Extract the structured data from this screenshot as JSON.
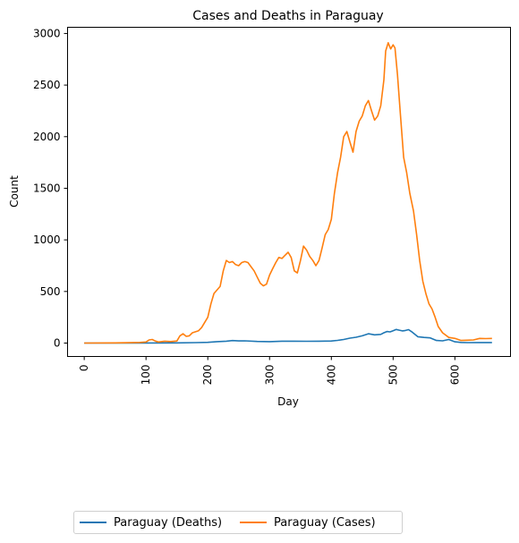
{
  "chart_data": {
    "type": "line",
    "title": "Cases and Deaths in Paraguay",
    "xlabel": "Day",
    "ylabel": "Count",
    "xlim": [
      -27,
      690
    ],
    "ylim": [
      -130,
      3060
    ],
    "xticks": [
      0,
      100,
      200,
      300,
      400,
      500,
      600
    ],
    "yticks": [
      0,
      500,
      1000,
      1500,
      2000,
      2500,
      3000
    ],
    "grid": false,
    "legend_position": "bottom-left (below axes)",
    "series": [
      {
        "name": "Paraguay (Deaths)",
        "color": "#1f77b4",
        "points": [
          [
            0,
            0
          ],
          [
            50,
            0
          ],
          [
            100,
            1
          ],
          [
            150,
            2
          ],
          [
            180,
            4
          ],
          [
            200,
            7
          ],
          [
            215,
            14
          ],
          [
            230,
            18
          ],
          [
            240,
            24
          ],
          [
            250,
            21
          ],
          [
            260,
            22
          ],
          [
            280,
            16
          ],
          [
            300,
            14
          ],
          [
            320,
            18
          ],
          [
            340,
            18
          ],
          [
            360,
            17
          ],
          [
            380,
            18
          ],
          [
            400,
            20
          ],
          [
            410,
            26
          ],
          [
            420,
            35
          ],
          [
            430,
            48
          ],
          [
            440,
            56
          ],
          [
            450,
            70
          ],
          [
            460,
            90
          ],
          [
            470,
            80
          ],
          [
            480,
            84
          ],
          [
            485,
            100
          ],
          [
            490,
            112
          ],
          [
            495,
            108
          ],
          [
            500,
            120
          ],
          [
            505,
            132
          ],
          [
            510,
            125
          ],
          [
            515,
            118
          ],
          [
            520,
            122
          ],
          [
            525,
            130
          ],
          [
            530,
            110
          ],
          [
            540,
            62
          ],
          [
            550,
            55
          ],
          [
            560,
            50
          ],
          [
            570,
            25
          ],
          [
            580,
            22
          ],
          [
            590,
            35
          ],
          [
            600,
            12
          ],
          [
            610,
            6
          ],
          [
            620,
            4
          ],
          [
            640,
            5
          ],
          [
            660,
            5
          ]
        ]
      },
      {
        "name": "Paraguay (Cases)",
        "color": "#ff7f0e",
        "points": [
          [
            0,
            0
          ],
          [
            50,
            2
          ],
          [
            90,
            6
          ],
          [
            100,
            10
          ],
          [
            105,
            30
          ],
          [
            110,
            35
          ],
          [
            115,
            20
          ],
          [
            120,
            10
          ],
          [
            130,
            18
          ],
          [
            140,
            15
          ],
          [
            150,
            20
          ],
          [
            155,
            70
          ],
          [
            160,
            90
          ],
          [
            165,
            65
          ],
          [
            170,
            70
          ],
          [
            175,
            100
          ],
          [
            185,
            120
          ],
          [
            190,
            150
          ],
          [
            200,
            250
          ],
          [
            205,
            380
          ],
          [
            210,
            480
          ],
          [
            220,
            550
          ],
          [
            225,
            700
          ],
          [
            230,
            800
          ],
          [
            235,
            780
          ],
          [
            240,
            790
          ],
          [
            245,
            760
          ],
          [
            250,
            750
          ],
          [
            255,
            780
          ],
          [
            260,
            790
          ],
          [
            265,
            780
          ],
          [
            270,
            740
          ],
          [
            275,
            700
          ],
          [
            280,
            640
          ],
          [
            285,
            580
          ],
          [
            290,
            555
          ],
          [
            295,
            570
          ],
          [
            300,
            660
          ],
          [
            305,
            720
          ],
          [
            310,
            780
          ],
          [
            315,
            830
          ],
          [
            320,
            820
          ],
          [
            325,
            850
          ],
          [
            330,
            880
          ],
          [
            335,
            830
          ],
          [
            340,
            700
          ],
          [
            345,
            680
          ],
          [
            350,
            800
          ],
          [
            355,
            940
          ],
          [
            360,
            900
          ],
          [
            365,
            840
          ],
          [
            370,
            800
          ],
          [
            375,
            750
          ],
          [
            380,
            800
          ],
          [
            385,
            920
          ],
          [
            390,
            1050
          ],
          [
            395,
            1100
          ],
          [
            400,
            1200
          ],
          [
            405,
            1450
          ],
          [
            410,
            1650
          ],
          [
            415,
            1800
          ],
          [
            420,
            2000
          ],
          [
            425,
            2050
          ],
          [
            430,
            1950
          ],
          [
            435,
            1850
          ],
          [
            440,
            2050
          ],
          [
            445,
            2150
          ],
          [
            450,
            2200
          ],
          [
            455,
            2300
          ],
          [
            460,
            2350
          ],
          [
            465,
            2250
          ],
          [
            470,
            2160
          ],
          [
            475,
            2200
          ],
          [
            480,
            2300
          ],
          [
            485,
            2550
          ],
          [
            488,
            2830
          ],
          [
            492,
            2910
          ],
          [
            496,
            2850
          ],
          [
            500,
            2890
          ],
          [
            503,
            2860
          ],
          [
            507,
            2600
          ],
          [
            512,
            2200
          ],
          [
            517,
            1800
          ],
          [
            522,
            1650
          ],
          [
            527,
            1450
          ],
          [
            533,
            1280
          ],
          [
            538,
            1050
          ],
          [
            543,
            800
          ],
          [
            548,
            600
          ],
          [
            553,
            480
          ],
          [
            558,
            380
          ],
          [
            563,
            330
          ],
          [
            568,
            250
          ],
          [
            573,
            160
          ],
          [
            580,
            100
          ],
          [
            590,
            55
          ],
          [
            600,
            45
          ],
          [
            610,
            25
          ],
          [
            620,
            28
          ],
          [
            630,
            30
          ],
          [
            640,
            45
          ],
          [
            650,
            43
          ],
          [
            660,
            45
          ]
        ]
      }
    ]
  }
}
